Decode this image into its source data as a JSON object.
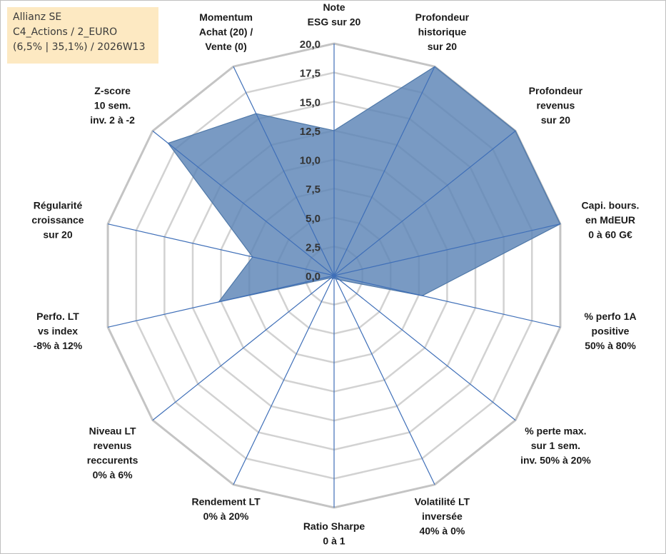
{
  "info": {
    "line1": "Allianz SE",
    "line2": "C4_Actions / 2_EURO",
    "line3": "(6,5% | 35,1%) / 2026W13"
  },
  "chart_data": {
    "type": "radar",
    "title": "Allianz SE",
    "rmin": 0,
    "rmax": 20,
    "ticks": [
      {
        "value": 0,
        "label": "0,0"
      },
      {
        "value": 2.5,
        "label": "2,5"
      },
      {
        "value": 5,
        "label": "5,0"
      },
      {
        "value": 7.5,
        "label": "7,5"
      },
      {
        "value": 10,
        "label": "10,0"
      },
      {
        "value": 12.5,
        "label": "12,5"
      },
      {
        "value": 15,
        "label": "15,0"
      },
      {
        "value": 17.5,
        "label": "17,5"
      },
      {
        "value": 20,
        "label": "20,0"
      }
    ],
    "axes": [
      {
        "lines": [
          "Note",
          "ESG sur 20"
        ]
      },
      {
        "lines": [
          "Profondeur",
          "historique",
          "sur 20"
        ]
      },
      {
        "lines": [
          "Profondeur",
          "revenus",
          "sur 20"
        ]
      },
      {
        "lines": [
          "Capi. bours.",
          "en MdEUR",
          "0 à 60 G€"
        ]
      },
      {
        "lines": [
          "% perfo 1A",
          "positive",
          "50% à 80%"
        ]
      },
      {
        "lines": [
          "% perte max.",
          "sur 1 sem.",
          "inv. 50% à 20%"
        ]
      },
      {
        "lines": [
          "Volatilité LT",
          "inversée",
          "40% à 0%"
        ]
      },
      {
        "lines": [
          "Ratio Sharpe",
          "0 à 1"
        ]
      },
      {
        "lines": [
          "Rendement LT",
          "0% à 20%"
        ]
      },
      {
        "lines": [
          "Niveau LT",
          "revenus",
          "reccurents",
          "0% à 6%"
        ]
      },
      {
        "lines": [
          "Perfo. LT",
          "vs index",
          "-8% à 12%"
        ]
      },
      {
        "lines": [
          "Régularité",
          "croissance",
          "sur 20"
        ]
      },
      {
        "lines": [
          "Z-score",
          "10 sem.",
          "inv. 2 à -2"
        ]
      },
      {
        "lines": [
          "Momentum",
          "Achat (20) /",
          "Vente (0)"
        ]
      }
    ],
    "series": [
      {
        "name": "Allianz SE",
        "color": "#5b84b6",
        "values": [
          12.5,
          20,
          20,
          20,
          7.8,
          0.6,
          0.3,
          0.2,
          0.3,
          0.3,
          10.2,
          7.2,
          18.3,
          15.5
        ]
      }
    ]
  }
}
